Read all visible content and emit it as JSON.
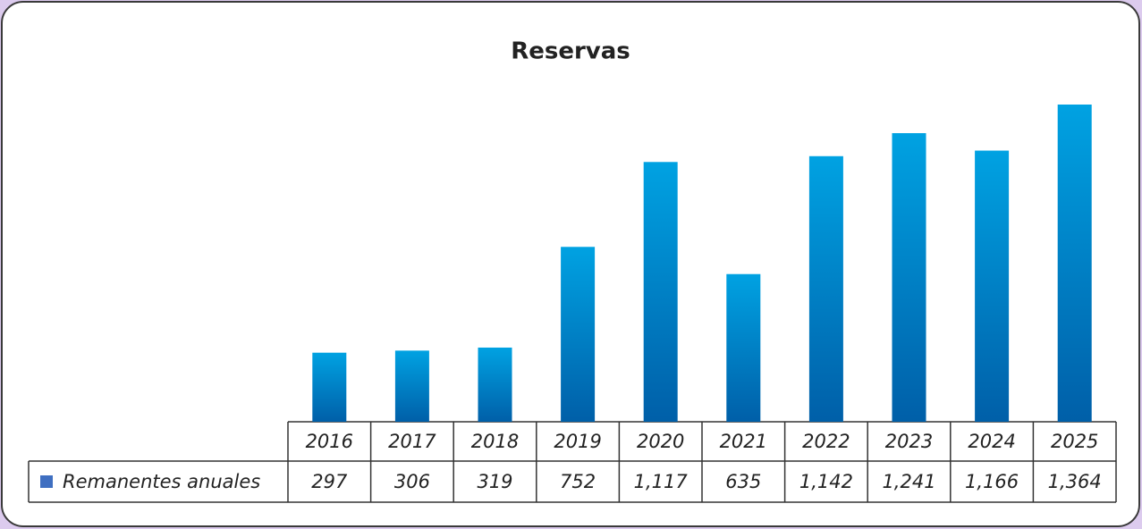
{
  "chart_data": {
    "type": "bar",
    "title": "Reservas",
    "categories": [
      "2016",
      "2017",
      "2018",
      "2019",
      "2020",
      "2021",
      "2022",
      "2023",
      "2024",
      "2025"
    ],
    "series": [
      {
        "name": "Remanentes anuales",
        "color": "#3f6fc1",
        "values": [
          297,
          306,
          319,
          752,
          1117,
          635,
          1142,
          1241,
          1166,
          1364
        ],
        "value_labels": [
          "297",
          "306",
          "319",
          "752",
          "1,117",
          "635",
          "1,142",
          "1,241",
          "1,166",
          "1,364"
        ]
      }
    ]
  }
}
